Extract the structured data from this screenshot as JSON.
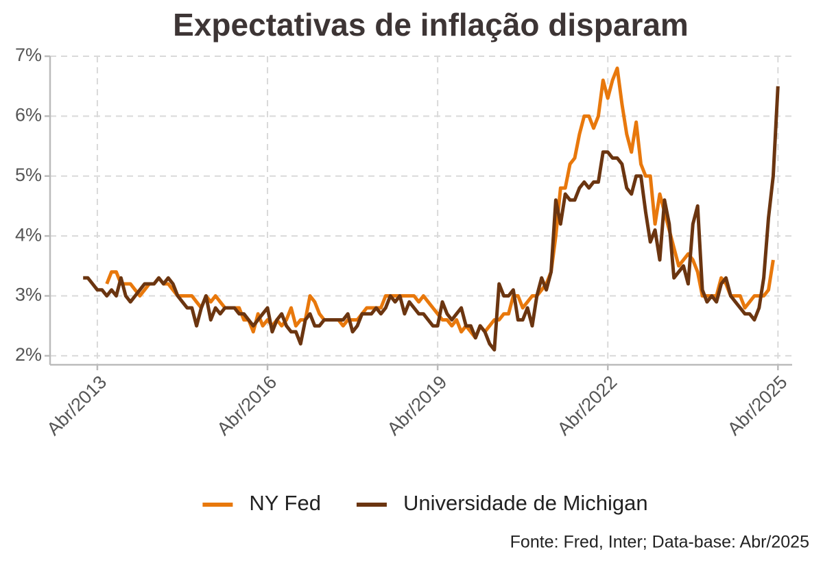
{
  "chart_data": {
    "type": "line",
    "title": "Expectativas de inflação disparam",
    "source": "Fonte: Fred, Inter; Data-base: Abr/2025",
    "x": [
      "2013-01",
      "2013-02",
      "2013-03",
      "2013-04",
      "2013-05",
      "2013-06",
      "2013-07",
      "2013-08",
      "2013-09",
      "2013-10",
      "2013-11",
      "2013-12",
      "2014-01",
      "2014-02",
      "2014-03",
      "2014-04",
      "2014-05",
      "2014-06",
      "2014-07",
      "2014-08",
      "2014-09",
      "2014-10",
      "2014-11",
      "2014-12",
      "2015-01",
      "2015-02",
      "2015-03",
      "2015-04",
      "2015-05",
      "2015-06",
      "2015-07",
      "2015-08",
      "2015-09",
      "2015-10",
      "2015-11",
      "2015-12",
      "2016-01",
      "2016-02",
      "2016-03",
      "2016-04",
      "2016-05",
      "2016-06",
      "2016-07",
      "2016-08",
      "2016-09",
      "2016-10",
      "2016-11",
      "2016-12",
      "2017-01",
      "2017-02",
      "2017-03",
      "2017-04",
      "2017-05",
      "2017-06",
      "2017-07",
      "2017-08",
      "2017-09",
      "2017-10",
      "2017-11",
      "2017-12",
      "2018-01",
      "2018-02",
      "2018-03",
      "2018-04",
      "2018-05",
      "2018-06",
      "2018-07",
      "2018-08",
      "2018-09",
      "2018-10",
      "2018-11",
      "2018-12",
      "2019-01",
      "2019-02",
      "2019-03",
      "2019-04",
      "2019-05",
      "2019-06",
      "2019-07",
      "2019-08",
      "2019-09",
      "2019-10",
      "2019-11",
      "2019-12",
      "2020-01",
      "2020-02",
      "2020-03",
      "2020-04",
      "2020-05",
      "2020-06",
      "2020-07",
      "2020-08",
      "2020-09",
      "2020-10",
      "2020-11",
      "2020-12",
      "2021-01",
      "2021-02",
      "2021-03",
      "2021-04",
      "2021-05",
      "2021-06",
      "2021-07",
      "2021-08",
      "2021-09",
      "2021-10",
      "2021-11",
      "2021-12",
      "2022-01",
      "2022-02",
      "2022-03",
      "2022-04",
      "2022-05",
      "2022-06",
      "2022-07",
      "2022-08",
      "2022-09",
      "2022-10",
      "2022-11",
      "2022-12",
      "2023-01",
      "2023-02",
      "2023-03",
      "2023-04",
      "2023-05",
      "2023-06",
      "2023-07",
      "2023-08",
      "2023-09",
      "2023-10",
      "2023-11",
      "2023-12",
      "2024-01",
      "2024-02",
      "2024-03",
      "2024-04",
      "2024-05",
      "2024-06",
      "2024-07",
      "2024-08",
      "2024-09",
      "2024-10",
      "2024-11",
      "2024-12",
      "2025-01",
      "2025-02",
      "2025-03",
      "2025-04"
    ],
    "series": [
      {
        "name": "NY Fed",
        "color": "#e8780c",
        "values": [
          null,
          null,
          null,
          null,
          null,
          3.2,
          3.4,
          3.4,
          3.2,
          3.2,
          3.2,
          3.1,
          3.0,
          3.1,
          3.2,
          3.2,
          3.3,
          3.2,
          3.2,
          3.1,
          3.0,
          3.0,
          3.0,
          3.0,
          2.9,
          2.8,
          3.0,
          2.9,
          3.0,
          2.9,
          2.8,
          2.8,
          2.8,
          2.8,
          2.6,
          2.6,
          2.4,
          2.7,
          2.5,
          2.6,
          2.5,
          2.6,
          2.5,
          2.6,
          2.8,
          2.5,
          2.6,
          2.6,
          3.0,
          2.9,
          2.7,
          2.6,
          2.6,
          2.6,
          2.6,
          2.5,
          2.6,
          2.6,
          2.6,
          2.7,
          2.8,
          2.8,
          2.8,
          2.8,
          3.0,
          3.0,
          3.0,
          3.0,
          3.0,
          3.0,
          3.0,
          2.9,
          3.0,
          2.9,
          2.8,
          2.7,
          2.6,
          2.6,
          2.5,
          2.6,
          2.4,
          2.5,
          2.4,
          2.3,
          2.5,
          2.4,
          2.5,
          2.6,
          2.6,
          2.7,
          2.7,
          3.0,
          3.0,
          2.8,
          2.9,
          3.0,
          3.0,
          3.1,
          3.2,
          3.4,
          4.0,
          4.8,
          4.8,
          5.2,
          5.3,
          5.7,
          6.0,
          6.0,
          5.8,
          6.0,
          6.6,
          6.3,
          6.6,
          6.8,
          6.2,
          5.7,
          5.4,
          5.9,
          5.2,
          5.0,
          5.0,
          4.2,
          4.7,
          4.4,
          4.1,
          3.8,
          3.5,
          3.6,
          3.7,
          3.6,
          3.4,
          3.0,
          3.0,
          3.0,
          3.0,
          3.3,
          3.2,
          3.0,
          3.0,
          3.0,
          2.8,
          2.9,
          3.0,
          3.0,
          3.0,
          3.1,
          3.6,
          null
        ]
      },
      {
        "name": "Universidade de Michigan",
        "color": "#6b3510",
        "values": [
          3.3,
          3.3,
          3.2,
          3.1,
          3.1,
          3.0,
          3.1,
          3.0,
          3.3,
          3.0,
          2.9,
          3.0,
          3.1,
          3.2,
          3.2,
          3.2,
          3.3,
          3.2,
          3.3,
          3.2,
          3.0,
          2.9,
          2.8,
          2.8,
          2.5,
          2.8,
          3.0,
          2.6,
          2.8,
          2.7,
          2.8,
          2.8,
          2.8,
          2.7,
          2.7,
          2.6,
          2.5,
          2.6,
          2.7,
          2.8,
          2.4,
          2.6,
          2.7,
          2.5,
          2.4,
          2.4,
          2.2,
          2.6,
          2.7,
          2.5,
          2.5,
          2.6,
          2.6,
          2.6,
          2.6,
          2.6,
          2.7,
          2.4,
          2.5,
          2.7,
          2.7,
          2.7,
          2.8,
          2.7,
          2.8,
          3.0,
          2.9,
          3.0,
          2.7,
          2.9,
          2.8,
          2.7,
          2.7,
          2.6,
          2.5,
          2.5,
          2.9,
          2.7,
          2.6,
          2.7,
          2.8,
          2.5,
          2.5,
          2.3,
          2.5,
          2.4,
          2.2,
          2.1,
          3.2,
          3.0,
          3.0,
          3.1,
          2.6,
          2.6,
          2.8,
          2.5,
          3.0,
          3.3,
          3.1,
          3.4,
          4.6,
          4.2,
          4.7,
          4.6,
          4.6,
          4.8,
          4.9,
          4.8,
          4.9,
          4.9,
          5.4,
          5.4,
          5.3,
          5.3,
          5.2,
          4.8,
          4.7,
          5.0,
          5.0,
          4.4,
          3.9,
          4.1,
          3.6,
          4.6,
          4.2,
          3.3,
          3.4,
          3.5,
          3.2,
          4.2,
          4.5,
          3.1,
          2.9,
          3.0,
          2.9,
          3.2,
          3.3,
          3.0,
          2.9,
          2.8,
          2.7,
          2.7,
          2.6,
          2.8,
          3.3,
          4.3,
          5.0,
          6.5
        ]
      }
    ],
    "xlim": [
      "2012-06",
      "2025-07"
    ],
    "xticks": [
      {
        "value": "2013-04",
        "label": "Abr/2013"
      },
      {
        "value": "2016-04",
        "label": "Abr/2016"
      },
      {
        "value": "2019-04",
        "label": "Abr/2019"
      },
      {
        "value": "2022-04",
        "label": "Abr/2022"
      },
      {
        "value": "2025-04",
        "label": "Abr/2025"
      }
    ],
    "ylim": [
      1.85,
      7
    ],
    "yticks": [
      {
        "value": 2,
        "label": "2%"
      },
      {
        "value": 3,
        "label": "3%"
      },
      {
        "value": 4,
        "label": "4%"
      },
      {
        "value": 5,
        "label": "5%"
      },
      {
        "value": 6,
        "label": "6%"
      },
      {
        "value": 7,
        "label": "7%"
      }
    ],
    "grid": true,
    "legend": "bottom"
  }
}
